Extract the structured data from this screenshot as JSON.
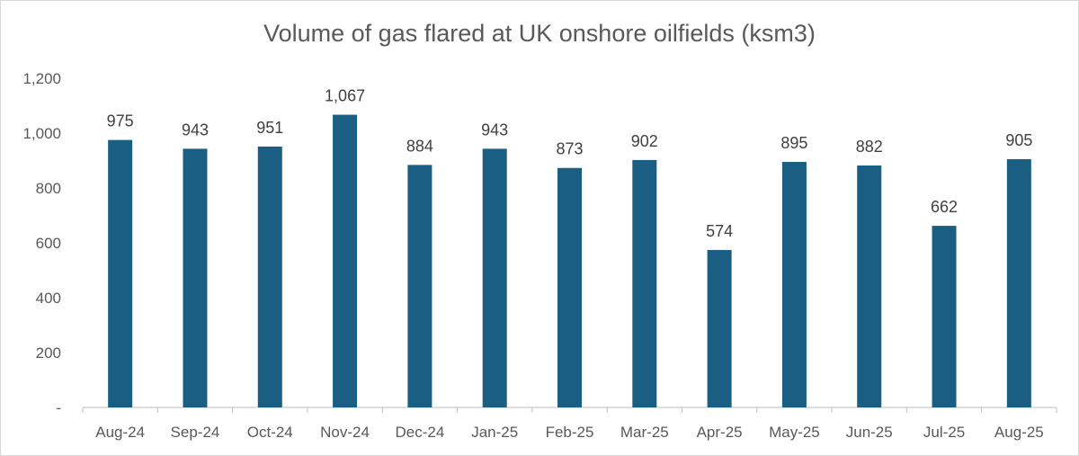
{
  "chart_data": {
    "type": "bar",
    "title": "Volume of gas flared at UK onshore oilfields (ksm3)",
    "xlabel": "",
    "ylabel": "",
    "categories": [
      "Aug-24",
      "Sep-24",
      "Oct-24",
      "Nov-24",
      "Dec-24",
      "Jan-25",
      "Feb-25",
      "Mar-25",
      "Apr-25",
      "May-25",
      "Jun-25",
      "Jul-25",
      "Aug-25"
    ],
    "values": [
      975,
      943,
      951,
      1067,
      884,
      943,
      873,
      902,
      574,
      895,
      882,
      662,
      905
    ],
    "data_labels": [
      "975",
      "943",
      "951",
      "1,067",
      "884",
      "943",
      "873",
      "902",
      "574",
      "895",
      "882",
      "662",
      "905"
    ],
    "ylim": [
      0,
      1200
    ],
    "y_ticks": [
      0,
      200,
      400,
      600,
      800,
      1000,
      1200
    ],
    "y_tick_labels": [
      "-",
      "200",
      "400",
      "600",
      "800",
      "1,000",
      "1,200"
    ],
    "grid": false,
    "legend": "none",
    "bar_color": "#1a5e84"
  }
}
